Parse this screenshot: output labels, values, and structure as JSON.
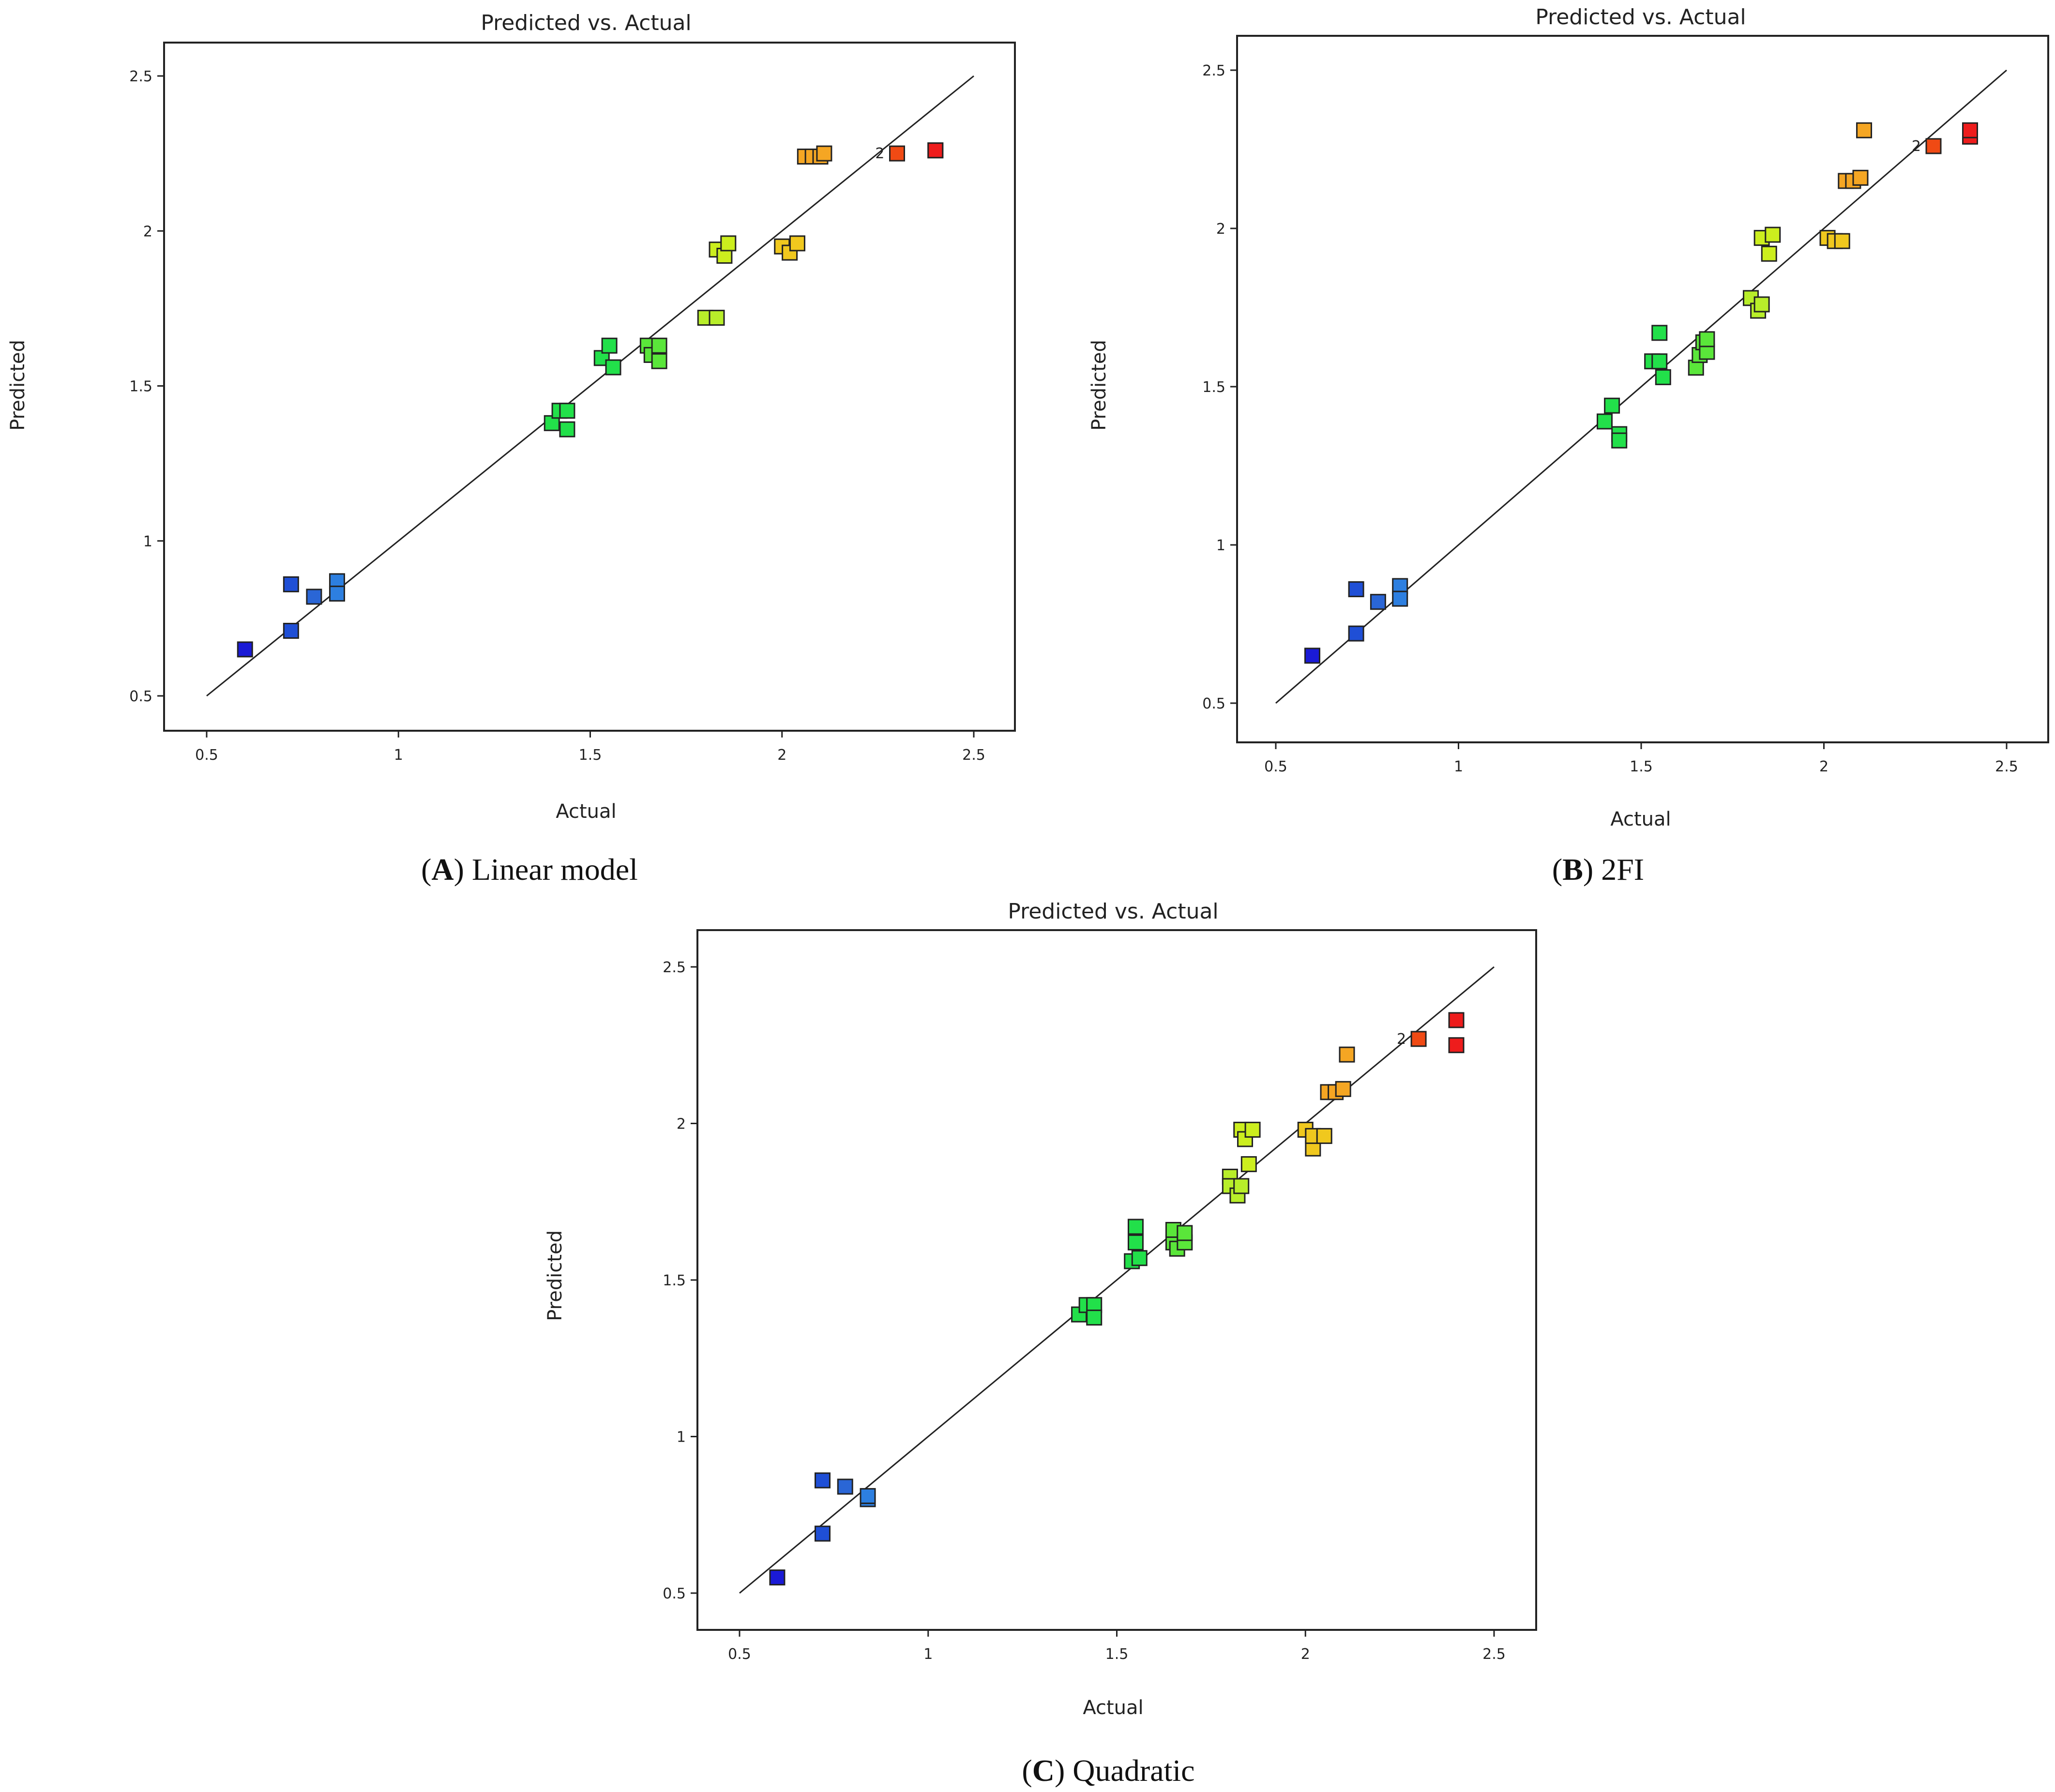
{
  "chart_data": [
    {
      "type": "scatter",
      "title": "Predicted vs. Actual",
      "xlabel": "Actual",
      "ylabel": "Predicted",
      "xlim": [
        0.4,
        2.6
      ],
      "ylim": [
        0.4,
        2.6
      ],
      "xticks": [
        "0.5",
        "1",
        "1.5",
        "2",
        "2.5"
      ],
      "yticks": [
        "0.5",
        "1",
        "1.5",
        "2",
        "2.5"
      ],
      "reference_line": [
        [
          0.5,
          0.5
        ],
        [
          2.5,
          2.5
        ]
      ],
      "caption": {
        "letter": "A",
        "text": "Linear model"
      },
      "annotations": [
        {
          "text": "2",
          "x": 2.3,
          "y": 2.25
        }
      ],
      "points": [
        {
          "x": 0.6,
          "y": 0.65,
          "color": "#1a1ad6"
        },
        {
          "x": 0.72,
          "y": 0.86,
          "color": "#1f4fd6"
        },
        {
          "x": 0.72,
          "y": 0.71,
          "color": "#1f4fd6"
        },
        {
          "x": 0.78,
          "y": 0.82,
          "color": "#2a66d6"
        },
        {
          "x": 0.84,
          "y": 0.87,
          "color": "#2d7fe0"
        },
        {
          "x": 0.84,
          "y": 0.83,
          "color": "#2d7fe0"
        },
        {
          "x": 1.4,
          "y": 1.38,
          "color": "#22e04a"
        },
        {
          "x": 1.42,
          "y": 1.42,
          "color": "#22e04a"
        },
        {
          "x": 1.44,
          "y": 1.42,
          "color": "#22e04a"
        },
        {
          "x": 1.44,
          "y": 1.36,
          "color": "#22e04a"
        },
        {
          "x": 1.53,
          "y": 1.59,
          "color": "#22e04a"
        },
        {
          "x": 1.55,
          "y": 1.63,
          "color": "#22e04a"
        },
        {
          "x": 1.56,
          "y": 1.56,
          "color": "#22e04a"
        },
        {
          "x": 1.65,
          "y": 1.63,
          "color": "#5ae63a"
        },
        {
          "x": 1.66,
          "y": 1.6,
          "color": "#5ae63a"
        },
        {
          "x": 1.68,
          "y": 1.63,
          "color": "#5ae63a"
        },
        {
          "x": 1.68,
          "y": 1.58,
          "color": "#5ae63a"
        },
        {
          "x": 1.8,
          "y": 1.72,
          "color": "#b8ee2a"
        },
        {
          "x": 1.83,
          "y": 1.72,
          "color": "#b8ee2a"
        },
        {
          "x": 1.83,
          "y": 1.94,
          "color": "#ccee1e"
        },
        {
          "x": 1.85,
          "y": 1.92,
          "color": "#ccee1e"
        },
        {
          "x": 1.86,
          "y": 1.96,
          "color": "#ccee1e"
        },
        {
          "x": 2.0,
          "y": 1.95,
          "color": "#f0c81e"
        },
        {
          "x": 2.02,
          "y": 1.93,
          "color": "#f0c81e"
        },
        {
          "x": 2.04,
          "y": 1.96,
          "color": "#f0c81e"
        },
        {
          "x": 2.06,
          "y": 2.24,
          "color": "#f5a623"
        },
        {
          "x": 2.08,
          "y": 2.24,
          "color": "#f5a623"
        },
        {
          "x": 2.1,
          "y": 2.24,
          "color": "#f5a623"
        },
        {
          "x": 2.11,
          "y": 2.25,
          "color": "#f5a623"
        },
        {
          "x": 2.3,
          "y": 2.25,
          "color": "#f04a14"
        },
        {
          "x": 2.4,
          "y": 2.26,
          "color": "#ee1c1c"
        },
        {
          "x": 2.4,
          "y": 2.26,
          "color": "#ee1c1c"
        }
      ]
    },
    {
      "type": "scatter",
      "title": "Predicted vs. Actual",
      "xlabel": "Actual",
      "ylabel": "Predicted",
      "xlim": [
        0.4,
        2.6
      ],
      "ylim": [
        0.4,
        2.6
      ],
      "xticks": [
        "0.5",
        "1",
        "1.5",
        "2",
        "2.5"
      ],
      "yticks": [
        "0.5",
        "1",
        "1.5",
        "2",
        "2.5"
      ],
      "reference_line": [
        [
          0.5,
          0.5
        ],
        [
          2.5,
          2.5
        ]
      ],
      "caption": {
        "letter": "B",
        "text": "2FI"
      },
      "annotations": [
        {
          "text": "2",
          "x": 2.3,
          "y": 2.26
        }
      ],
      "points": [
        {
          "x": 0.6,
          "y": 0.65,
          "color": "#1a1ad6"
        },
        {
          "x": 0.72,
          "y": 0.86,
          "color": "#1f4fd6"
        },
        {
          "x": 0.72,
          "y": 0.72,
          "color": "#1f4fd6"
        },
        {
          "x": 0.78,
          "y": 0.82,
          "color": "#2a66d6"
        },
        {
          "x": 0.84,
          "y": 0.87,
          "color": "#2d7fe0"
        },
        {
          "x": 0.84,
          "y": 0.83,
          "color": "#2d7fe0"
        },
        {
          "x": 1.4,
          "y": 1.39,
          "color": "#22e04a"
        },
        {
          "x": 1.42,
          "y": 1.44,
          "color": "#22e04a"
        },
        {
          "x": 1.44,
          "y": 1.35,
          "color": "#22e04a"
        },
        {
          "x": 1.44,
          "y": 1.33,
          "color": "#22e04a"
        },
        {
          "x": 1.53,
          "y": 1.58,
          "color": "#22e04a"
        },
        {
          "x": 1.55,
          "y": 1.58,
          "color": "#22e04a"
        },
        {
          "x": 1.55,
          "y": 1.67,
          "color": "#22e04a"
        },
        {
          "x": 1.56,
          "y": 1.53,
          "color": "#22e04a"
        },
        {
          "x": 1.65,
          "y": 1.56,
          "color": "#5ae63a"
        },
        {
          "x": 1.66,
          "y": 1.6,
          "color": "#5ae63a"
        },
        {
          "x": 1.67,
          "y": 1.64,
          "color": "#5ae63a"
        },
        {
          "x": 1.68,
          "y": 1.61,
          "color": "#5ae63a"
        },
        {
          "x": 1.68,
          "y": 1.65,
          "color": "#5ae63a"
        },
        {
          "x": 1.8,
          "y": 1.78,
          "color": "#b8ee2a"
        },
        {
          "x": 1.82,
          "y": 1.74,
          "color": "#b8ee2a"
        },
        {
          "x": 1.83,
          "y": 1.76,
          "color": "#b8ee2a"
        },
        {
          "x": 1.83,
          "y": 1.97,
          "color": "#ccee1e"
        },
        {
          "x": 1.85,
          "y": 1.92,
          "color": "#ccee1e"
        },
        {
          "x": 1.86,
          "y": 1.98,
          "color": "#ccee1e"
        },
        {
          "x": 2.01,
          "y": 1.97,
          "color": "#f0c81e"
        },
        {
          "x": 2.03,
          "y": 1.96,
          "color": "#f0c81e"
        },
        {
          "x": 2.05,
          "y": 1.96,
          "color": "#f0c81e"
        },
        {
          "x": 2.06,
          "y": 2.15,
          "color": "#f5a623"
        },
        {
          "x": 2.08,
          "y": 2.15,
          "color": "#f5a623"
        },
        {
          "x": 2.1,
          "y": 2.16,
          "color": "#f5a623"
        },
        {
          "x": 2.11,
          "y": 2.31,
          "color": "#f5a623"
        },
        {
          "x": 2.3,
          "y": 2.26,
          "color": "#f04a14"
        },
        {
          "x": 2.4,
          "y": 2.29,
          "color": "#ee1c1c"
        },
        {
          "x": 2.4,
          "y": 2.31,
          "color": "#ee1c1c"
        }
      ]
    },
    {
      "type": "scatter",
      "title": "Predicted vs. Actual",
      "xlabel": "Actual",
      "ylabel": "Predicted",
      "xlim": [
        0.4,
        2.6
      ],
      "ylim": [
        0.4,
        2.6
      ],
      "xticks": [
        "0.5",
        "1",
        "1.5",
        "2",
        "2.5"
      ],
      "yticks": [
        "0.5",
        "1",
        "1.5",
        "2",
        "2.5"
      ],
      "reference_line": [
        [
          0.5,
          0.5
        ],
        [
          2.5,
          2.5
        ]
      ],
      "caption": {
        "letter": "C",
        "text": "Quadratic"
      },
      "annotations": [
        {
          "text": "2",
          "x": 2.3,
          "y": 2.27
        }
      ],
      "points": [
        {
          "x": 0.6,
          "y": 0.55,
          "color": "#1a1ad6"
        },
        {
          "x": 0.72,
          "y": 0.86,
          "color": "#1f4fd6"
        },
        {
          "x": 0.72,
          "y": 0.69,
          "color": "#1f4fd6"
        },
        {
          "x": 0.78,
          "y": 0.84,
          "color": "#2a66d6"
        },
        {
          "x": 0.84,
          "y": 0.8,
          "color": "#2d7fe0"
        },
        {
          "x": 0.84,
          "y": 0.81,
          "color": "#2d7fe0"
        },
        {
          "x": 1.4,
          "y": 1.39,
          "color": "#22e04a"
        },
        {
          "x": 1.42,
          "y": 1.42,
          "color": "#22e04a"
        },
        {
          "x": 1.44,
          "y": 1.42,
          "color": "#22e04a"
        },
        {
          "x": 1.44,
          "y": 1.38,
          "color": "#22e04a"
        },
        {
          "x": 1.54,
          "y": 1.56,
          "color": "#22e04a"
        },
        {
          "x": 1.55,
          "y": 1.62,
          "color": "#22e04a"
        },
        {
          "x": 1.55,
          "y": 1.67,
          "color": "#22e04a"
        },
        {
          "x": 1.56,
          "y": 1.57,
          "color": "#22e04a"
        },
        {
          "x": 1.65,
          "y": 1.62,
          "color": "#5ae63a"
        },
        {
          "x": 1.66,
          "y": 1.6,
          "color": "#5ae63a"
        },
        {
          "x": 1.65,
          "y": 1.66,
          "color": "#5ae63a"
        },
        {
          "x": 1.68,
          "y": 1.62,
          "color": "#5ae63a"
        },
        {
          "x": 1.68,
          "y": 1.65,
          "color": "#5ae63a"
        },
        {
          "x": 1.8,
          "y": 1.83,
          "color": "#b8ee2a"
        },
        {
          "x": 1.8,
          "y": 1.8,
          "color": "#b8ee2a"
        },
        {
          "x": 1.82,
          "y": 1.77,
          "color": "#b8ee2a"
        },
        {
          "x": 1.83,
          "y": 1.8,
          "color": "#b8ee2a"
        },
        {
          "x": 1.83,
          "y": 1.98,
          "color": "#ccee1e"
        },
        {
          "x": 1.84,
          "y": 1.95,
          "color": "#ccee1e"
        },
        {
          "x": 1.85,
          "y": 1.87,
          "color": "#ccee1e"
        },
        {
          "x": 1.86,
          "y": 1.98,
          "color": "#ccee1e"
        },
        {
          "x": 2.0,
          "y": 1.98,
          "color": "#f0c81e"
        },
        {
          "x": 2.02,
          "y": 1.92,
          "color": "#f0c81e"
        },
        {
          "x": 2.02,
          "y": 1.96,
          "color": "#f0c81e"
        },
        {
          "x": 2.05,
          "y": 1.96,
          "color": "#f0c81e"
        },
        {
          "x": 2.06,
          "y": 2.1,
          "color": "#f5a623"
        },
        {
          "x": 2.08,
          "y": 2.1,
          "color": "#f5a623"
        },
        {
          "x": 2.1,
          "y": 2.11,
          "color": "#f5a623"
        },
        {
          "x": 2.11,
          "y": 2.22,
          "color": "#f5a623"
        },
        {
          "x": 2.3,
          "y": 2.27,
          "color": "#f04a14"
        },
        {
          "x": 2.4,
          "y": 2.33,
          "color": "#ee1c1c"
        },
        {
          "x": 2.4,
          "y": 2.25,
          "color": "#ee1c1c"
        }
      ]
    }
  ]
}
